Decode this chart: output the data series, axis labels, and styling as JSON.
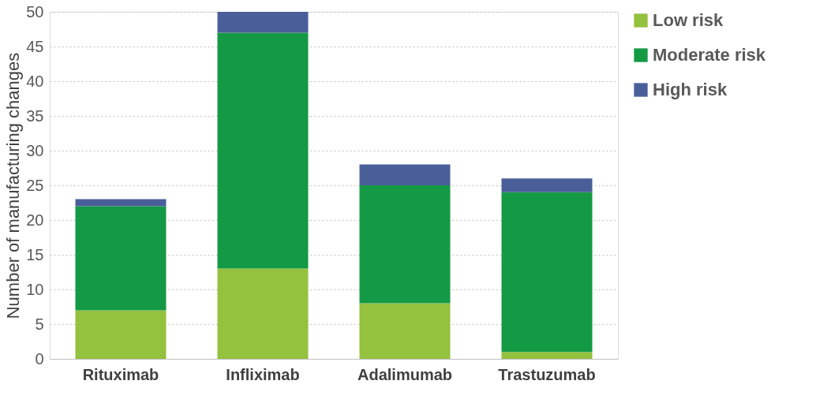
{
  "chart_data": {
    "type": "bar",
    "stacked": true,
    "ylabel": "Number of manufacturing changes",
    "categories": [
      "Rituximab",
      "Infliximab",
      "Adalimumab",
      "Trastuzumab"
    ],
    "series": [
      {
        "name": "Low risk",
        "color": "#94c13e",
        "values": [
          7,
          13,
          8,
          1
        ]
      },
      {
        "name": "Moderate risk",
        "color": "#149a44",
        "values": [
          15,
          34,
          17,
          23
        ]
      },
      {
        "name": "High risk",
        "color": "#4a5f9a",
        "values": [
          1,
          3,
          3,
          2
        ]
      }
    ],
    "ylim": [
      0,
      50
    ],
    "yticks": [
      0,
      5,
      10,
      15,
      20,
      25,
      30,
      35,
      40,
      45,
      50
    ],
    "grid": "y",
    "legend": "right"
  }
}
